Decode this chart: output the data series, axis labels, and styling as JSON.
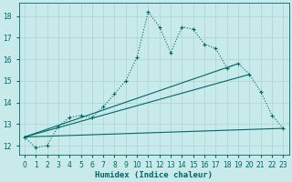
{
  "xlabel": "Humidex (Indice chaleur)",
  "background_color": "#c8eaea",
  "grid_color": "#b0d8d8",
  "line_color": "#006666",
  "x_values": [
    0,
    1,
    2,
    3,
    4,
    5,
    6,
    7,
    8,
    9,
    10,
    11,
    12,
    13,
    14,
    15,
    16,
    17,
    18,
    19,
    20,
    21,
    22,
    23
  ],
  "y_main": [
    12.4,
    11.9,
    12.0,
    12.9,
    13.3,
    13.4,
    13.3,
    13.8,
    14.4,
    15.0,
    16.1,
    18.2,
    17.5,
    16.3,
    17.5,
    17.4,
    16.7,
    16.5,
    15.6,
    15.8,
    15.3,
    14.5,
    13.4,
    12.8
  ],
  "straight_lines": [
    {
      "x": [
        0,
        23
      ],
      "y": [
        12.4,
        12.8
      ]
    },
    {
      "x": [
        0,
        20
      ],
      "y": [
        12.4,
        15.3
      ]
    },
    {
      "x": [
        0,
        19
      ],
      "y": [
        12.4,
        15.8
      ]
    }
  ],
  "ylim": [
    11.6,
    18.6
  ],
  "xlim": [
    -0.5,
    23.5
  ],
  "yticks": [
    12,
    13,
    14,
    15,
    16,
    17,
    18
  ],
  "xticks": [
    0,
    1,
    2,
    3,
    4,
    5,
    6,
    7,
    8,
    9,
    10,
    11,
    12,
    13,
    14,
    15,
    16,
    17,
    18,
    19,
    20,
    21,
    22,
    23
  ],
  "tick_fontsize": 5.5,
  "xlabel_fontsize": 6.5
}
